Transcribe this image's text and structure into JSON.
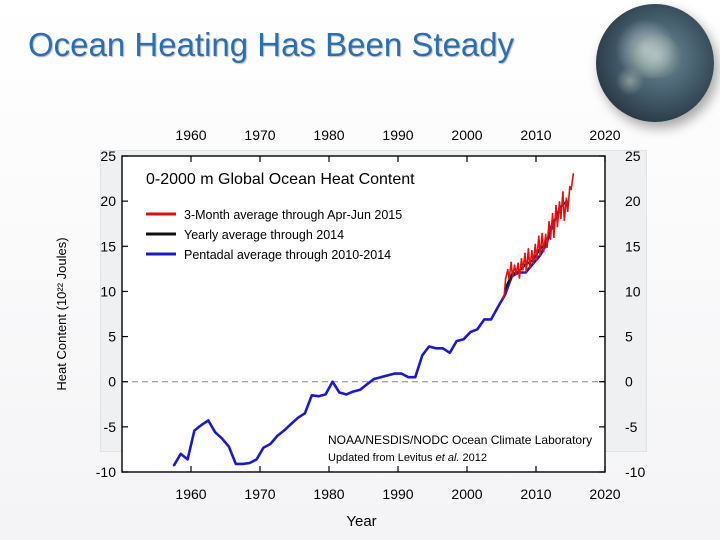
{
  "slide": {
    "title": "Ocean Heating Has Been Steady"
  },
  "chart_data": {
    "type": "line",
    "title": "0-2000 m Global Ocean Heat Content",
    "xlabel": "Year",
    "ylabel": "Heat Content (10²² Joules)",
    "xlim": [
      1950,
      2020
    ],
    "ylim": [
      -10,
      25
    ],
    "x_ticks": [
      1960,
      1970,
      1980,
      1990,
      2000,
      2010,
      2020
    ],
    "y_ticks": [
      -10,
      -5,
      0,
      5,
      10,
      15,
      20,
      25
    ],
    "zero_line": true,
    "legend_position": "top-left",
    "credit_line1": "NOAA/NESDIS/NODC Ocean Climate Laboratory",
    "credit_prefix": "Updated from Levitus",
    "credit_etal": "et al.",
    "credit_year": "2012",
    "series": [
      {
        "name": "Pentadal average through 2010-2014",
        "color": "#1a1acc",
        "x": [
          1957.5,
          1958.5,
          1959.5,
          1960.5,
          1961.5,
          1962.5,
          1963.5,
          1964.5,
          1965.5,
          1966.5,
          1967.5,
          1968.5,
          1969.5,
          1970.5,
          1971.5,
          1972.5,
          1973.5,
          1974.5,
          1975.5,
          1976.5,
          1977.5,
          1978.5,
          1979.5,
          1980.5,
          1981.5,
          1982.5,
          1983.5,
          1984.5,
          1985.5,
          1986.5,
          1987.5,
          1988.5,
          1989.5,
          1990.5,
          1991.5,
          1992.5,
          1993.5,
          1994.5,
          1995.5,
          1996.5,
          1997.5,
          1998.5,
          1999.5,
          2000.5,
          2001.5,
          2002.5,
          2003.5,
          2004.5,
          2005.5,
          2006.5,
          2007.5,
          2008.5,
          2009.5,
          2010.5,
          2011.5,
          2012.5
        ],
        "y": [
          -9.3,
          -8.0,
          -8.6,
          -5.4,
          -4.8,
          -4.3,
          -5.6,
          -6.3,
          -7.2,
          -9.1,
          -9.1,
          -9.0,
          -8.6,
          -7.3,
          -6.9,
          -6.0,
          -5.4,
          -4.7,
          -4.0,
          -3.5,
          -1.5,
          -1.6,
          -1.4,
          0.0,
          -1.2,
          -1.4,
          -1.1,
          -0.9,
          -0.3,
          0.3,
          0.5,
          0.7,
          0.9,
          0.9,
          0.5,
          0.5,
          2.9,
          3.9,
          3.7,
          3.7,
          3.2,
          4.5,
          4.7,
          5.5,
          5.8,
          6.9,
          6.9,
          8.3,
          9.6,
          11.7,
          12.1,
          12.1,
          13.0,
          13.9,
          15.2,
          17.8
        ]
      },
      {
        "name": "Yearly average through 2014",
        "color": "#111111",
        "x": [
          2005.5,
          2006.5,
          2007.5,
          2008.5,
          2009.5,
          2010.5,
          2011.5,
          2012.5,
          2013.5,
          2014.5
        ],
        "y": [
          10.2,
          11.9,
          12.2,
          13.0,
          13.4,
          14.6,
          15.4,
          17.5,
          19.3,
          20.0
        ]
      },
      {
        "name": "3-Month average through Apr-Jun 2015",
        "color": "#dd1111",
        "x": [
          2005.1,
          2005.4,
          2005.6,
          2005.9,
          2006.1,
          2006.4,
          2006.6,
          2006.9,
          2007.1,
          2007.4,
          2007.6,
          2007.9,
          2008.1,
          2008.4,
          2008.6,
          2008.9,
          2009.1,
          2009.4,
          2009.6,
          2009.9,
          2010.1,
          2010.4,
          2010.6,
          2010.9,
          2011.1,
          2011.4,
          2011.6,
          2011.9,
          2012.1,
          2012.4,
          2012.6,
          2012.9,
          2013.1,
          2013.4,
          2013.6,
          2013.9,
          2014.1,
          2014.4,
          2014.6,
          2014.9,
          2015.1,
          2015.4
        ],
        "y": [
          9.2,
          9.6,
          11.4,
          12.4,
          11.4,
          13.2,
          11.6,
          12.9,
          11.9,
          13.1,
          11.5,
          13.6,
          12.4,
          14.2,
          12.2,
          14.7,
          12.6,
          14.5,
          13.1,
          15.2,
          13.5,
          16.1,
          14.0,
          16.4,
          14.4,
          16.3,
          14.9,
          17.7,
          15.8,
          18.6,
          16.0,
          19.5,
          17.2,
          19.9,
          18.1,
          21.0,
          17.9,
          20.3,
          18.9,
          21.6,
          21.3,
          23.0
        ]
      }
    ]
  }
}
